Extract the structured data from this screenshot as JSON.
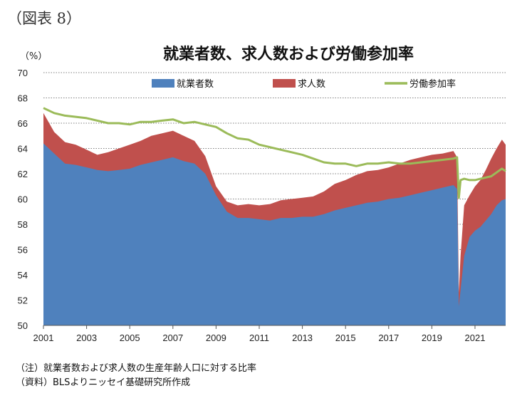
{
  "figure_label": "（図表 8）",
  "notes": [
    "（注）就業者数および求人数の生産年齢人口に対する比率",
    "（資料）BLSよりニッセイ基礎研究所作成"
  ],
  "chart_data": {
    "type": "area",
    "title": "就業者数、求人数および労働参加率",
    "unit_label": "（%）",
    "ylim": [
      50,
      70
    ],
    "yticks": [
      50,
      52,
      54,
      56,
      58,
      60,
      62,
      64,
      66,
      68,
      70
    ],
    "xlim": [
      2001,
      2022.42
    ],
    "xticks": [
      2001,
      2003,
      2005,
      2007,
      2009,
      2011,
      2013,
      2015,
      2017,
      2019,
      2021
    ],
    "grid": "horizontal dotted",
    "legend_position": "top",
    "colors": {
      "employment": "#4f81bd",
      "openings": "#c0504d",
      "participation": "#9bbb59"
    },
    "x": [
      2001.0,
      2001.5,
      2002.0,
      2002.5,
      2003.0,
      2003.5,
      2004.0,
      2004.5,
      2005.0,
      2005.5,
      2006.0,
      2006.5,
      2007.0,
      2007.5,
      2008.0,
      2008.5,
      2009.0,
      2009.5,
      2010.0,
      2010.5,
      2011.0,
      2011.5,
      2012.0,
      2012.5,
      2013.0,
      2013.5,
      2014.0,
      2014.5,
      2015.0,
      2015.5,
      2016.0,
      2016.5,
      2017.0,
      2017.5,
      2018.0,
      2018.5,
      2019.0,
      2019.5,
      2020.0,
      2020.17,
      2020.25,
      2020.33,
      2020.5,
      2020.75,
      2021.0,
      2021.25,
      2021.5,
      2021.75,
      2022.0,
      2022.25,
      2022.42
    ],
    "series": [
      {
        "name": "就業者数",
        "kind": "area",
        "values": [
          64.4,
          63.6,
          62.8,
          62.7,
          62.5,
          62.3,
          62.2,
          62.3,
          62.4,
          62.7,
          62.9,
          63.1,
          63.3,
          63.0,
          62.8,
          62.0,
          60.3,
          59.0,
          58.5,
          58.5,
          58.4,
          58.3,
          58.5,
          58.5,
          58.6,
          58.6,
          58.8,
          59.1,
          59.3,
          59.5,
          59.7,
          59.8,
          60.0,
          60.1,
          60.3,
          60.5,
          60.7,
          60.9,
          61.1,
          60.8,
          51.5,
          52.8,
          55.5,
          57.0,
          57.5,
          57.8,
          58.3,
          58.8,
          59.5,
          59.9,
          60.0
        ]
      },
      {
        "name": "求人数",
        "kind": "area",
        "values": [
          66.8,
          65.3,
          64.5,
          64.3,
          63.9,
          63.5,
          63.7,
          64.0,
          64.3,
          64.6,
          65.0,
          65.2,
          65.4,
          65.0,
          64.6,
          63.4,
          61.0,
          59.8,
          59.5,
          59.6,
          59.5,
          59.6,
          59.9,
          60.0,
          60.1,
          60.2,
          60.6,
          61.2,
          61.5,
          61.9,
          62.2,
          62.3,
          62.5,
          62.8,
          63.1,
          63.3,
          63.5,
          63.6,
          63.8,
          63.3,
          52.6,
          55.5,
          59.5,
          60.3,
          61.0,
          61.5,
          62.3,
          63.2,
          64.0,
          64.7,
          64.3
        ]
      },
      {
        "name": "労働参加率",
        "kind": "line",
        "values": [
          67.2,
          66.8,
          66.6,
          66.5,
          66.4,
          66.2,
          66.0,
          66.0,
          65.9,
          66.1,
          66.1,
          66.2,
          66.3,
          66.0,
          66.1,
          65.9,
          65.7,
          65.2,
          64.8,
          64.7,
          64.3,
          64.1,
          63.9,
          63.7,
          63.5,
          63.2,
          62.9,
          62.8,
          62.8,
          62.6,
          62.8,
          62.8,
          62.9,
          62.8,
          62.8,
          62.9,
          63.0,
          63.1,
          63.2,
          63.3,
          60.1,
          61.5,
          61.6,
          61.5,
          61.5,
          61.6,
          61.7,
          61.8,
          62.1,
          62.4,
          62.2
        ]
      }
    ]
  }
}
